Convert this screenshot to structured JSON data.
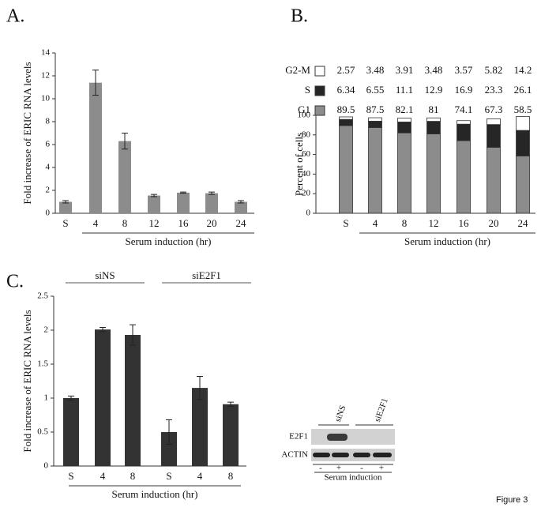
{
  "figure_label": "Figure 3",
  "panel_labels": [
    "A.",
    "B.",
    "C."
  ],
  "chart_data": [
    {
      "type": "bar",
      "ylabel": "Fold increase of ERIC RNA levels",
      "xlabel": "Serum induction (hr)",
      "categories": [
        "S",
        "4",
        "8",
        "12",
        "16",
        "20",
        "24"
      ],
      "values": [
        1.0,
        11.4,
        6.3,
        1.55,
        1.8,
        1.75,
        1.0
      ],
      "errors": [
        0.1,
        1.1,
        0.7,
        0.1,
        0.05,
        0.1,
        0.1
      ],
      "color": "#8c8c8c",
      "ylim": [
        0,
        14
      ],
      "yticks": [
        0,
        2,
        4,
        6,
        8,
        10,
        12,
        14
      ]
    },
    {
      "type": "stacked_bar",
      "ylabel": "Percent of cells",
      "xlabel": "Serum induction (hr)",
      "categories": [
        "S",
        "4",
        "8",
        "12",
        "16",
        "20",
        "24"
      ],
      "series": [
        {
          "name": "G2-M",
          "color": "#ffffff",
          "values": [
            2.57,
            3.48,
            3.91,
            3.48,
            3.57,
            5.82,
            14.2
          ]
        },
        {
          "name": "S",
          "color": "#262626",
          "values": [
            6.34,
            6.55,
            11.1,
            12.9,
            16.9,
            23.3,
            26.1
          ]
        },
        {
          "name": "G1",
          "color": "#8c8c8c",
          "values": [
            89.5,
            87.5,
            82.1,
            81,
            74.1,
            67.3,
            58.5
          ]
        }
      ],
      "ylim": [
        0,
        100
      ],
      "yticks": [
        0,
        20,
        40,
        60,
        80,
        100
      ]
    },
    {
      "type": "bar",
      "ylabel": "Fold increase of ERIC RNA levels",
      "xlabel": "Serum induction (hr)",
      "categories": [
        "S",
        "4",
        "8",
        "S",
        "4",
        "8"
      ],
      "groups": [
        "siNS",
        "siE2F1"
      ],
      "values": [
        1.0,
        2.01,
        1.93,
        0.5,
        1.15,
        0.91
      ],
      "errors": [
        0.03,
        0.03,
        0.15,
        0.18,
        0.17,
        0.03
      ],
      "color": "#333333",
      "ylim": [
        0,
        2.5
      ],
      "yticks": [
        0,
        0.5,
        1,
        1.5,
        2,
        2.5
      ]
    }
  ],
  "blot": {
    "lanes": [
      "siNS",
      "siE2F1"
    ],
    "rows": [
      "E2F1",
      "ACTIN"
    ],
    "treatment": [
      "-",
      "+",
      "-",
      "+"
    ],
    "treatment_label": "Serum induction"
  }
}
